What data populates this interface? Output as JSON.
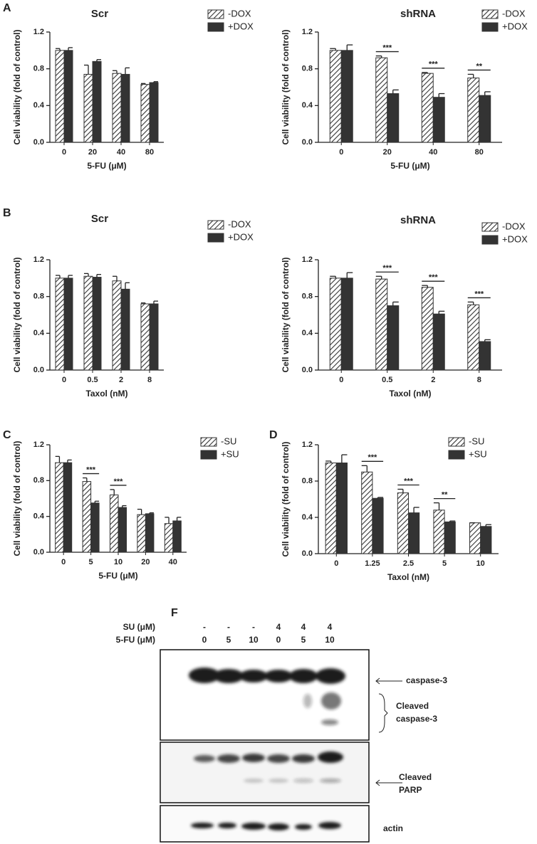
{
  "panel_labels": [
    "A",
    "B",
    "C",
    "D",
    "F"
  ],
  "chart_data": [
    {
      "type": "bar",
      "title": "Scr",
      "xlabel": "5-FU (μM)",
      "ylabel": "Cell viability (fold of control)",
      "categories": [
        "0",
        "20",
        "40",
        "80"
      ],
      "legend": "upper right",
      "ylim": [
        0,
        1.2
      ],
      "yticks": [
        {
          "value": 0,
          "label": "0.0"
        },
        0.4,
        0.8,
        1.2
      ],
      "series": [
        {
          "name": "-DOX",
          "color": "#333333",
          "pattern": "hatch",
          "values": [
            1.0,
            0.74,
            0.75,
            0.63
          ],
          "errors": [
            0.02,
            0.1,
            0.03,
            0.01
          ]
        },
        {
          "name": "+DOX",
          "color": "#333333",
          "values": [
            1.0,
            0.88,
            0.74,
            0.65
          ],
          "errors": [
            0.03,
            0.02,
            0.07,
            0.01
          ]
        }
      ],
      "annotations": [
        null,
        null,
        null,
        null
      ]
    },
    {
      "type": "bar",
      "title": "shRNA",
      "xlabel": "5-FU (μM)",
      "ylabel": "Cell viability (fold of control)",
      "categories": [
        "0",
        "20",
        "40",
        "80"
      ],
      "legend": "upper right",
      "ylim": [
        0,
        1.2
      ],
      "yticks": [
        {
          "value": 0,
          "label": "0.0"
        },
        0.4,
        0.8,
        1.2
      ],
      "series": [
        {
          "name": "-DOX",
          "color": "#333333",
          "pattern": "hatch",
          "values": [
            1.0,
            0.92,
            0.75,
            0.7
          ],
          "errors": [
            0.02,
            0.02,
            0.01,
            0.04
          ]
        },
        {
          "name": "+DOX",
          "color": "#333333",
          "values": [
            1.0,
            0.53,
            0.49,
            0.51
          ],
          "errors": [
            0.06,
            0.04,
            0.04,
            0.04
          ]
        }
      ],
      "annotations": [
        null,
        "***",
        "***",
        "**"
      ]
    },
    {
      "type": "bar",
      "title": "Scr",
      "xlabel": "Taxol (nM)",
      "ylabel": "Cell viability (fold of control)",
      "categories": [
        "0",
        "0.5",
        "2",
        "8"
      ],
      "legend": "upper right",
      "ylim": [
        0,
        1.2
      ],
      "yticks": [
        {
          "value": 0,
          "label": "0.0"
        },
        0.4,
        0.8,
        1.2
      ],
      "series": [
        {
          "name": "-DOX",
          "color": "#333333",
          "pattern": "hatch",
          "values": [
            1.0,
            1.02,
            0.97,
            0.72
          ],
          "errors": [
            0.03,
            0.03,
            0.05,
            0.01
          ]
        },
        {
          "name": "+DOX",
          "color": "#333333",
          "values": [
            1.0,
            1.01,
            0.88,
            0.72
          ],
          "errors": [
            0.03,
            0.03,
            0.07,
            0.03
          ]
        }
      ],
      "annotations": [
        null,
        null,
        null,
        null
      ]
    },
    {
      "type": "bar",
      "title": "shRNA",
      "xlabel": "Taxol (nM)",
      "ylabel": "Cell viability (fold of control)",
      "categories": [
        "0",
        "0.5",
        "2",
        "8"
      ],
      "legend": "upper right",
      "ylim": [
        0,
        1.2
      ],
      "yticks": [
        {
          "value": 0,
          "label": "0.0"
        },
        0.4,
        0.8,
        1.2
      ],
      "series": [
        {
          "name": "-DOX",
          "color": "#333333",
          "pattern": "hatch",
          "values": [
            1.0,
            0.99,
            0.9,
            0.71
          ],
          "errors": [
            0.02,
            0.03,
            0.02,
            0.03
          ]
        },
        {
          "name": "+DOX",
          "color": "#333333",
          "values": [
            1.0,
            0.7,
            0.61,
            0.31
          ],
          "errors": [
            0.06,
            0.04,
            0.03,
            0.02
          ]
        }
      ],
      "annotations": [
        null,
        "***",
        "***",
        "***"
      ]
    },
    {
      "type": "bar",
      "xlabel": "5-FU (μM)",
      "ylabel": "Cell viability (fold of control)",
      "categories": [
        "0",
        "5",
        "10",
        "20",
        "40"
      ],
      "legend": "upper right",
      "ylim": [
        0,
        1.2
      ],
      "yticks": [
        {
          "value": 0,
          "label": "0.0"
        },
        0.4,
        0.8,
        1.2
      ],
      "series": [
        {
          "name": "-SU",
          "color": "#333333",
          "pattern": "hatch",
          "values": [
            1.0,
            0.79,
            0.64,
            0.42,
            0.32
          ],
          "errors": [
            0.07,
            0.04,
            0.06,
            0.06,
            0.07
          ]
        },
        {
          "name": "+SU",
          "color": "#333333",
          "values": [
            1.0,
            0.55,
            0.5,
            0.43,
            0.35
          ],
          "errors": [
            0.03,
            0.02,
            0.02,
            0.01,
            0.04
          ]
        }
      ],
      "annotations": [
        null,
        "***",
        "***",
        null,
        null
      ]
    },
    {
      "type": "bar",
      "xlabel": "Taxol (nM)",
      "ylabel": "Cell viability (fold of control)",
      "categories": [
        "0",
        "1.25",
        "2.5",
        "5",
        "10"
      ],
      "legend": "upper right",
      "ylim": [
        0,
        1.2
      ],
      "yticks": [
        {
          "value": 0,
          "label": "0.0"
        },
        0.4,
        0.8,
        1.2
      ],
      "series": [
        {
          "name": "-SU",
          "color": "#333333",
          "pattern": "hatch",
          "values": [
            1.0,
            0.9,
            0.67,
            0.48,
            0.34
          ],
          "errors": [
            0.02,
            0.07,
            0.04,
            0.08,
            0.0
          ]
        },
        {
          "name": "+SU",
          "color": "#333333",
          "values": [
            1.0,
            0.61,
            0.45,
            0.35,
            0.3
          ],
          "errors": [
            0.09,
            0.01,
            0.06,
            0.01,
            0.02
          ]
        }
      ],
      "annotations": [
        null,
        "***",
        "***",
        "**",
        null
      ]
    }
  ],
  "blot": {
    "header_rows": [
      {
        "label": "SU  (μM)",
        "values": [
          "-",
          "-",
          "-",
          "4",
          "4",
          "4"
        ]
      },
      {
        "label": "5-FU (μM)",
        "values": [
          "0",
          "5",
          "10",
          "0",
          "5",
          "10"
        ]
      }
    ],
    "labels": [
      [
        "caspase-3"
      ],
      [
        "Cleaved",
        "caspase-3"
      ],
      [
        "Cleaved",
        "PARP"
      ],
      [
        "actin"
      ]
    ]
  }
}
